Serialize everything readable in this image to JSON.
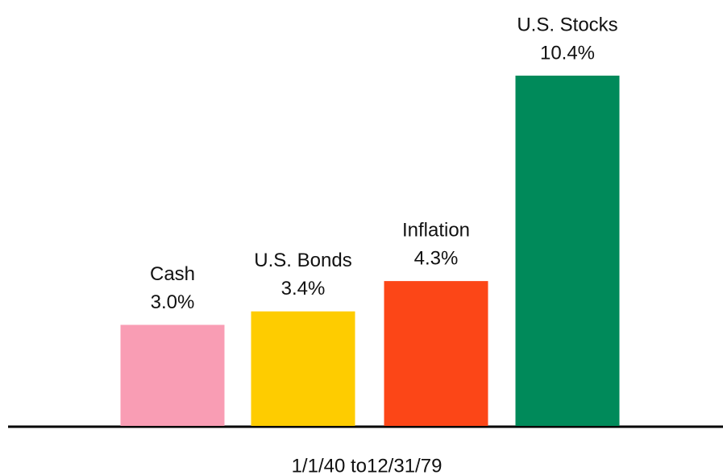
{
  "chart_data": {
    "type": "bar",
    "categories": [
      "Cash",
      "U.S. Bonds",
      "Inflation",
      "U.S. Stocks"
    ],
    "values": [
      3.0,
      3.4,
      4.3,
      10.4
    ],
    "value_labels": [
      "3.0%",
      "3.4%",
      "4.3%",
      "10.4%"
    ],
    "colors": [
      "#f99db4",
      "#fecc00",
      "#fc4617",
      "#008a5a"
    ],
    "xlabel": "1/1/40 to12/31/79",
    "ylim": [
      0,
      12
    ]
  }
}
